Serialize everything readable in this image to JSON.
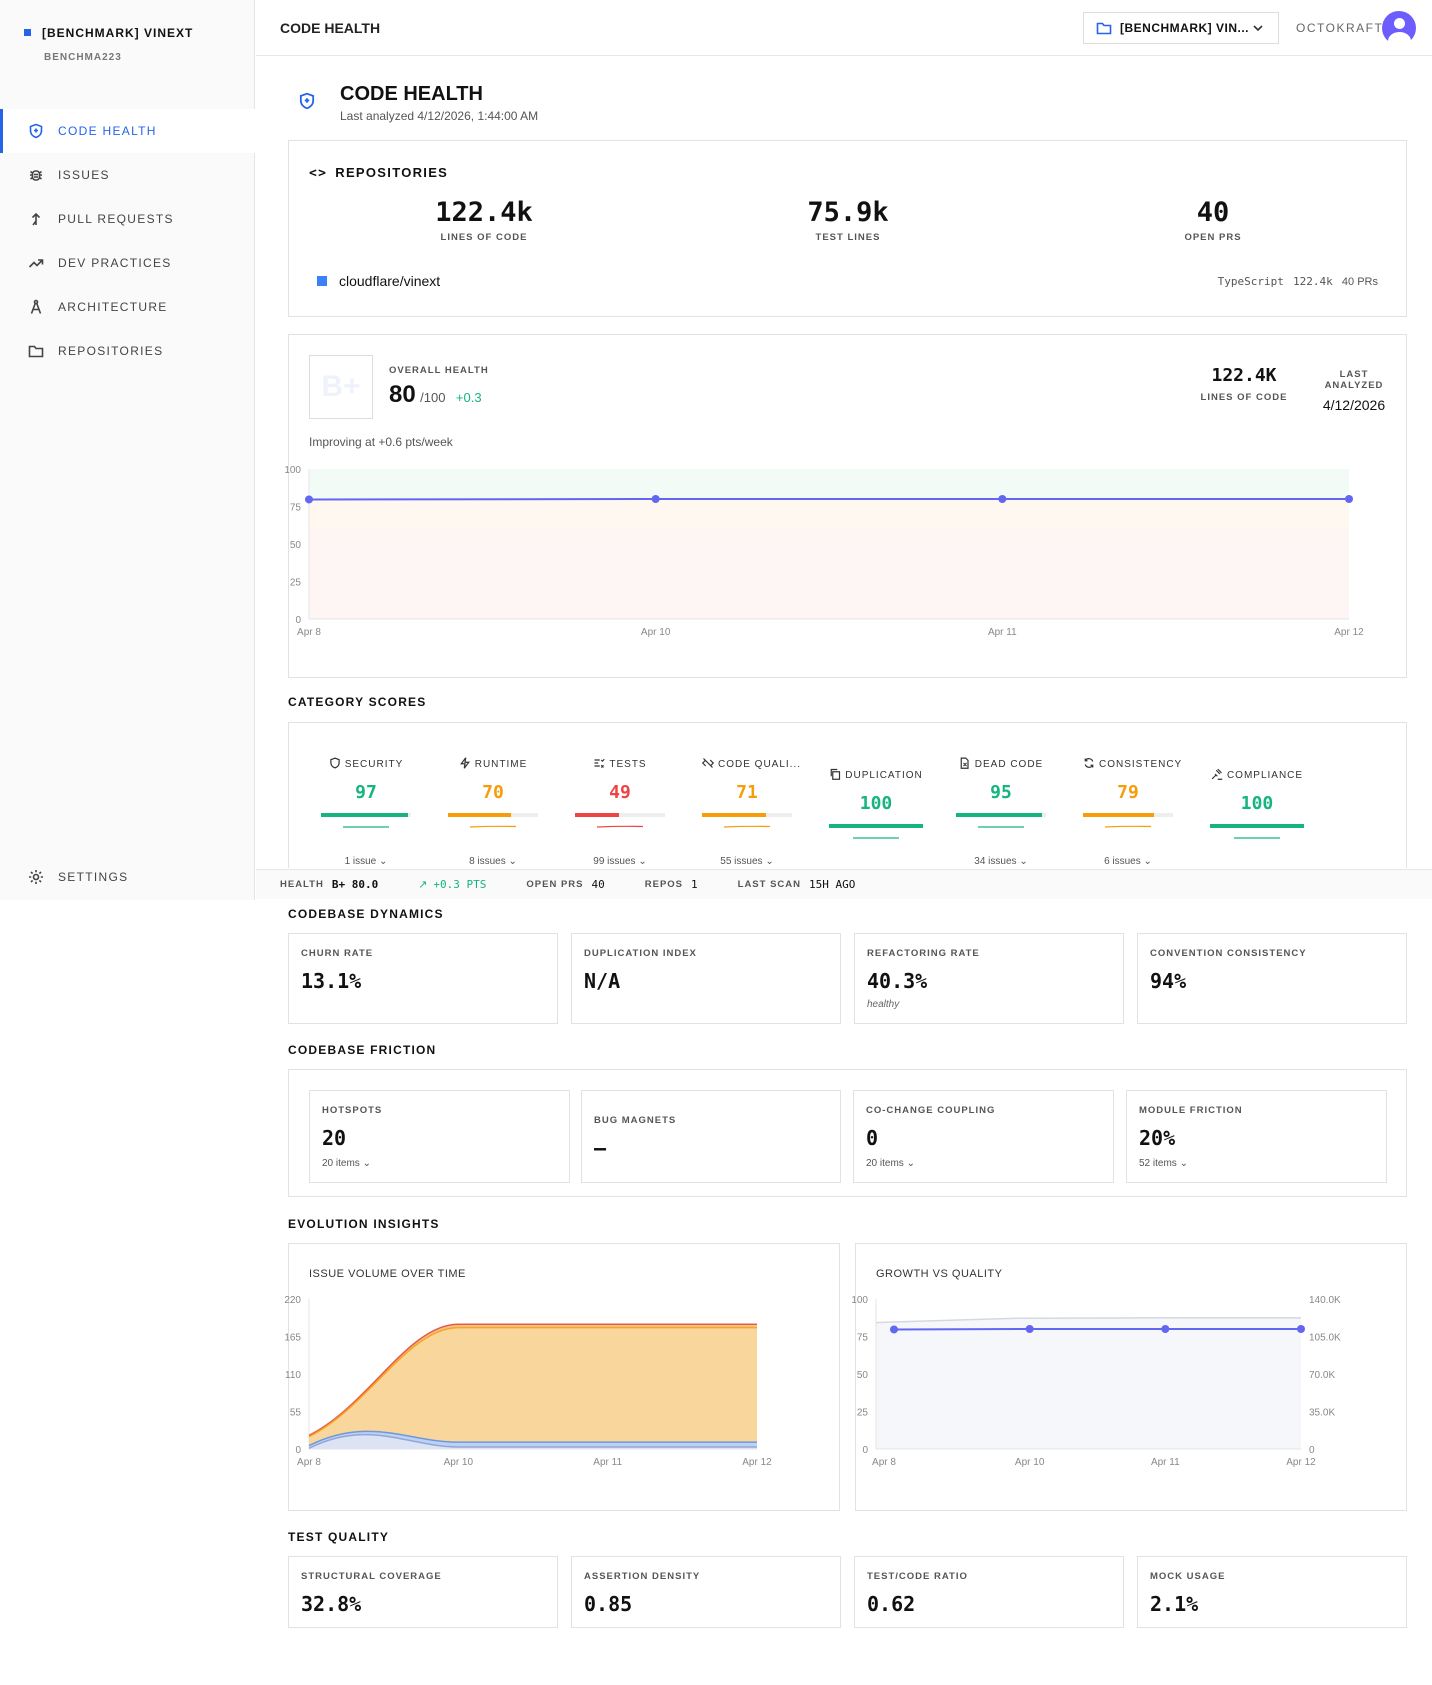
{
  "workspace": {
    "name": "[BENCHMARK] VINEXT",
    "sub": "BENCHMA223"
  },
  "nav": [
    {
      "label": "CODE HEALTH",
      "icon": "shield-icon"
    },
    {
      "label": "ISSUES",
      "icon": "bug-icon"
    },
    {
      "label": "PULL REQUESTS",
      "icon": "pull-request-icon"
    },
    {
      "label": "DEV PRACTICES",
      "icon": "trend-icon"
    },
    {
      "label": "ARCHITECTURE",
      "icon": "compass-icon"
    },
    {
      "label": "REPOSITORIES",
      "icon": "folder-icon"
    }
  ],
  "settings_label": "SETTINGS",
  "topbar": {
    "title": "CODE HEALTH",
    "project": "[BENCHMARK] VIN...",
    "user": "OCTOKRAFT"
  },
  "page": {
    "title": "CODE HEALTH",
    "subtitle": "Last analyzed 4/12/2026, 1:44:00 AM"
  },
  "repos": {
    "title": "REPOSITORIES",
    "stats": [
      {
        "value": "122.4k",
        "label": "LINES OF CODE"
      },
      {
        "value": "75.9k",
        "label": "TEST LINES"
      },
      {
        "value": "40",
        "label": "OPEN PRS"
      }
    ],
    "repo": {
      "name": "cloudflare/vinext",
      "lang": "TypeScript",
      "loc": "122.4k",
      "prs": "40 PRs",
      "color": "#3b82f6"
    }
  },
  "health": {
    "grade": "B+",
    "label": "OVERALL HEALTH",
    "score": "80",
    "max": "/100",
    "delta": "+0.3",
    "loc": "122.4K",
    "loc_label": "LINES OF CODE",
    "last_label": "LAST ANALYZED",
    "last": "4/12/2026",
    "trend": "Improving at +0.6 pts/week"
  },
  "chart_data": [
    {
      "type": "line",
      "title": "",
      "x": [
        "Apr 8",
        "Apr 10",
        "Apr 11",
        "Apr 12"
      ],
      "series": [
        {
          "values": [
            79.7,
            80,
            80,
            80
          ]
        }
      ],
      "ylim": [
        0,
        100
      ],
      "yticks": [
        "0",
        "25",
        "50",
        "75",
        "100"
      ]
    },
    {
      "type": "area",
      "title": "ISSUE VOLUME OVER TIME",
      "x": [
        "Apr 8",
        "Apr 10",
        "Apr 11",
        "Apr 12"
      ],
      "series": [
        {
          "values": [
            1,
            3,
            3,
            3
          ]
        },
        {
          "values": [
            5,
            10,
            10,
            10
          ]
        },
        {
          "values": [
            18,
            178,
            178,
            178
          ]
        },
        {
          "values": [
            20,
            183,
            183,
            183
          ]
        }
      ],
      "ylim": [
        0,
        220
      ],
      "yticks": [
        "0",
        "55",
        "110",
        "165",
        "220"
      ]
    },
    {
      "type": "line",
      "title": "GROWTH VS QUALITY",
      "x": [
        "Apr 8",
        "Apr 10",
        "Apr 11",
        "Apr 12"
      ],
      "series": [
        {
          "values": [
            79.7,
            80,
            80,
            80
          ]
        },
        {
          "values": [
            118000,
            122000,
            122400,
            122400
          ]
        }
      ],
      "ylim": [
        0,
        100
      ],
      "yticks": [
        "0",
        "25",
        "50",
        "75",
        "100"
      ],
      "y2ticks": [
        "0",
        "35.0K",
        "70.0K",
        "105.0K",
        "140.0K"
      ]
    }
  ],
  "categories_title": "CATEGORY SCORES",
  "categories": [
    {
      "label": "SECURITY",
      "score": "97",
      "value": 97,
      "color": "#16b47f",
      "issues": "1 issue",
      "icon": "shield-small-icon"
    },
    {
      "label": "RUNTIME",
      "score": "70",
      "value": 70,
      "color": "#f59e0b",
      "issues": "8 issues",
      "icon": "bolt-icon"
    },
    {
      "label": "TESTS",
      "score": "49",
      "value": 49,
      "color": "#ef4444",
      "issues": "99 issues",
      "icon": "checklist-icon"
    },
    {
      "label": "CODE QUALI...",
      "score": "71",
      "value": 71,
      "color": "#f59e0b",
      "issues": "55 issues",
      "icon": "code-slash-icon"
    },
    {
      "label": "DUPLICATION",
      "score": "100",
      "value": 100,
      "color": "#16b47f",
      "issues": "",
      "icon": "copy-icon"
    },
    {
      "label": "DEAD CODE",
      "score": "95",
      "value": 95,
      "color": "#16b47f",
      "issues": "34 issues",
      "icon": "file-x-icon"
    },
    {
      "label": "CONSISTENCY",
      "score": "79",
      "value": 79,
      "color": "#f59e0b",
      "issues": "6 issues",
      "icon": "refresh-icon"
    },
    {
      "label": "COMPLIANCE",
      "score": "100",
      "value": 100,
      "color": "#16b47f",
      "issues": "",
      "icon": "gavel-icon"
    }
  ],
  "status": {
    "health_label": "HEALTH",
    "health": "B+ 80.0",
    "trend": "+0.3 PTS",
    "prs_label": "OPEN PRS",
    "prs": "40",
    "repos_label": "REPOS",
    "repos": "1",
    "scan_label": "LAST SCAN",
    "scan": "15H AGO"
  },
  "dynamics": {
    "title": "CODEBASE DYNAMICS",
    "items": [
      {
        "label": "CHURN RATE",
        "value": "13.1%",
        "note": ""
      },
      {
        "label": "DUPLICATION INDEX",
        "value": "N/A",
        "note": ""
      },
      {
        "label": "REFACTORING RATE",
        "value": "40.3%",
        "note": "healthy"
      },
      {
        "label": "CONVENTION CONSISTENCY",
        "value": "94%",
        "note": ""
      }
    ]
  },
  "friction": {
    "title": "CODEBASE FRICTION",
    "items": [
      {
        "label": "HOTSPOTS",
        "value": "20",
        "items": "20 items"
      },
      {
        "label": "BUG MAGNETS",
        "value": "—",
        "items": ""
      },
      {
        "label": "CO-CHANGE COUPLING",
        "value": "0",
        "items": "20 items"
      },
      {
        "label": "MODULE FRICTION",
        "value": "20%",
        "items": "52 items"
      }
    ]
  },
  "evolution": {
    "title": "EVOLUTION INSIGHTS",
    "left": "ISSUE VOLUME OVER TIME",
    "right": "GROWTH VS QUALITY"
  },
  "testq": {
    "title": "TEST QUALITY",
    "items": [
      {
        "label": "STRUCTURAL COVERAGE",
        "value": "32.8%"
      },
      {
        "label": "ASSERTION DENSITY",
        "value": "0.85"
      },
      {
        "label": "TEST/CODE RATIO",
        "value": "0.62"
      },
      {
        "label": "MOCK USAGE",
        "value": "2.1%"
      }
    ]
  }
}
